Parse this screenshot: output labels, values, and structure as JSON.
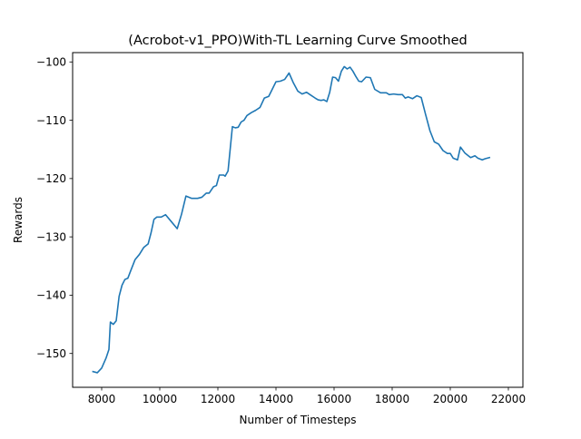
{
  "chart_data": {
    "type": "line",
    "title": "(Acrobot-v1_PPO)With-TL Learning Curve Smoothed",
    "xlabel": "Number of Timesteps",
    "ylabel": "Rewards",
    "xlim": [
      7000,
      22500
    ],
    "ylim": [
      -155.8,
      -98.4
    ],
    "xticks": [
      8000,
      10000,
      12000,
      14000,
      16000,
      18000,
      20000,
      22000
    ],
    "yticks": [
      -150,
      -140,
      -130,
      -120,
      -110,
      -100
    ],
    "grid": false,
    "series": [
      {
        "color": "#1f77b4",
        "x": [
          7700,
          7850,
          8000,
          8150,
          8250,
          8300,
          8400,
          8500,
          8600,
          8700,
          8800,
          8900,
          9000,
          9150,
          9300,
          9450,
          9600,
          9700,
          9800,
          9900,
          10050,
          10200,
          10400,
          10600,
          10750,
          10900,
          11100,
          11300,
          11450,
          11600,
          11700,
          11850,
          11950,
          12050,
          12200,
          12250,
          12350,
          12500,
          12600,
          12700,
          12800,
          12900,
          13000,
          13150,
          13300,
          13450,
          13600,
          13750,
          14000,
          14150,
          14300,
          14450,
          14600,
          14750,
          14900,
          15050,
          15200,
          15350,
          15450,
          15550,
          15650,
          15750,
          15850,
          15950,
          16050,
          16150,
          16250,
          16350,
          16450,
          16550,
          16650,
          16750,
          16850,
          16950,
          17100,
          17250,
          17400,
          17600,
          17800,
          17900,
          18050,
          18200,
          18350,
          18450,
          18550,
          18700,
          18850,
          19000,
          19150,
          19300,
          19450,
          19600,
          19750,
          19900,
          20000,
          20100,
          20250,
          20350,
          20500,
          20700,
          20850,
          20950,
          21100,
          21200,
          21350
        ],
        "values": [
          -153.1,
          -153.3,
          -152.5,
          -150.8,
          -149.3,
          -144.6,
          -145.0,
          -144.4,
          -140.2,
          -138.3,
          -137.3,
          -137.1,
          -135.8,
          -133.9,
          -133.0,
          -131.8,
          -131.2,
          -129.3,
          -127.0,
          -126.6,
          -126.6,
          -126.2,
          -127.4,
          -128.6,
          -126.1,
          -123.0,
          -123.4,
          -123.4,
          -123.2,
          -122.5,
          -122.5,
          -121.4,
          -121.2,
          -119.4,
          -119.4,
          -119.6,
          -118.7,
          -111.1,
          -111.3,
          -111.2,
          -110.3,
          -110.0,
          -109.2,
          -108.7,
          -108.3,
          -107.8,
          -106.2,
          -105.9,
          -103.4,
          -103.3,
          -103.0,
          -101.9,
          -103.6,
          -105.0,
          -105.5,
          -105.2,
          -105.7,
          -106.2,
          -106.5,
          -106.6,
          -106.5,
          -106.8,
          -105.2,
          -102.6,
          -102.7,
          -103.3,
          -101.6,
          -100.8,
          -101.2,
          -100.9,
          -101.6,
          -102.5,
          -103.3,
          -103.4,
          -102.6,
          -102.7,
          -104.7,
          -105.3,
          -105.3,
          -105.6,
          -105.5,
          -105.6,
          -105.6,
          -106.2,
          -106.0,
          -106.3,
          -105.8,
          -106.1,
          -109.0,
          -111.8,
          -113.7,
          -114.1,
          -115.2,
          -115.7,
          -115.7,
          -116.5,
          -116.8,
          -114.6,
          -115.6,
          -116.4,
          -116.1,
          -116.5,
          -116.8,
          -116.6,
          -116.4
        ]
      }
    ]
  }
}
